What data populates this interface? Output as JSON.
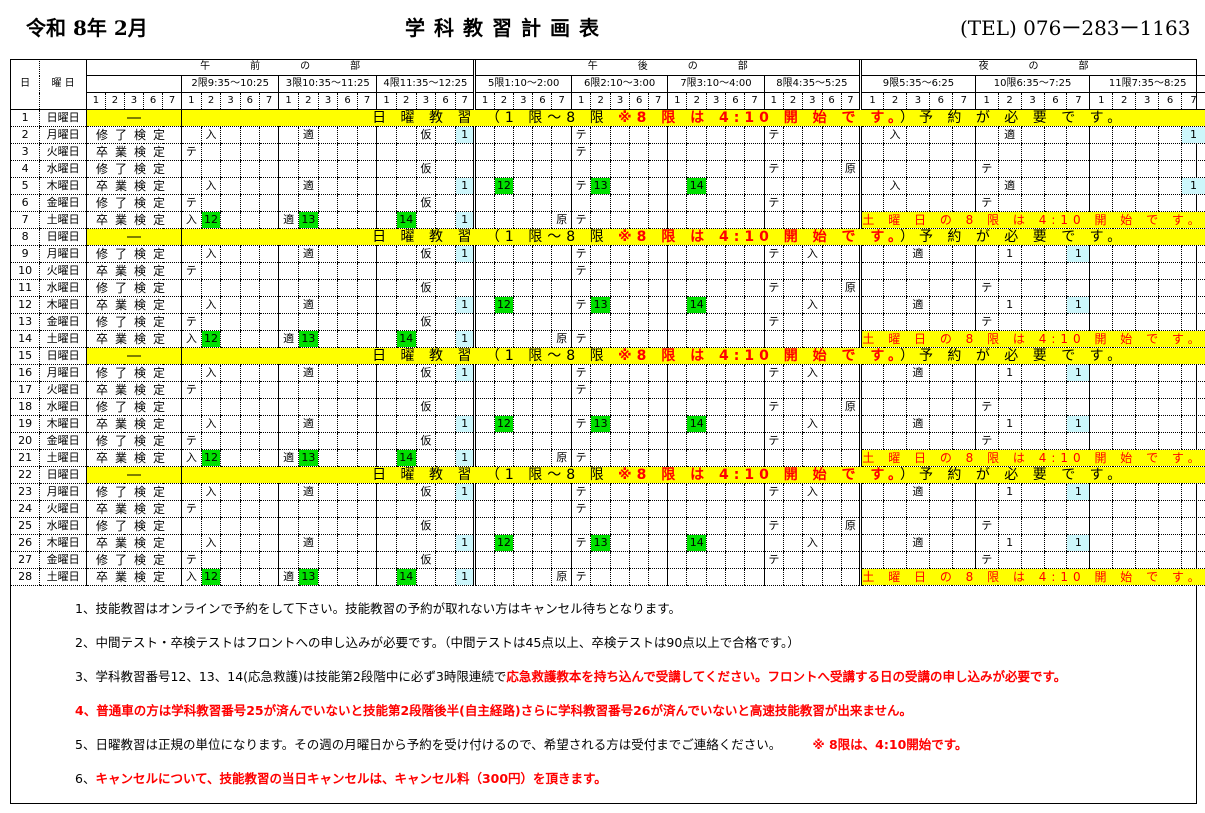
{
  "header": {
    "era_month": "令和 8年 2月",
    "title": "学科教習計画表",
    "tel": "(TEL) 076ー283ー1163"
  },
  "table": {
    "col_day": "日",
    "col_weekday": "曜 日",
    "sections": [
      {
        "label": "午　　　　前　　　　の　　　　部"
      },
      {
        "label": "午　　　　後　　　　の　　　　部"
      },
      {
        "label": "夜　　　　の　　　　部"
      }
    ],
    "periods": [
      "",
      "2限9:35～10:25",
      "3限10:35～11:25",
      "4限11:35～12:25",
      "5限1:10～2:00",
      "6限2:10～3:00",
      "7限3:10～4:00",
      "8限4:35～5:25",
      "9限5:35～6:25",
      "10限6:35～7:25",
      "11限7:35～8:25"
    ],
    "subcols": [
      "1",
      "2",
      "3",
      "6",
      "7"
    ],
    "sunday_dash": "―",
    "sunday_banner": {
      "a": "日 曜 教 習 （1 限～8 限 ",
      "b": "※8 限 は 4:10 開 始 で す。",
      "c": "）予 約 が 必 要 で す。"
    },
    "saturday_banner": "土 曜 日 の 8 限 は 4:10 開 始 で す。",
    "colors": {
      "banner": "#ffff00",
      "green": "#00e000",
      "cyan": "#ccf6fb",
      "red": "#ff0000"
    },
    "rows": [
      {
        "d": "1",
        "w": "日曜日",
        "type": "sunday"
      },
      {
        "d": "2",
        "w": "月曜日",
        "label": "修了検定",
        "cells": [
          {
            "p": 2,
            "s": "2",
            "t": "入"
          },
          {
            "p": 3,
            "s": "2",
            "t": "適"
          },
          {
            "p": 4,
            "s": "3",
            "t": "仮"
          },
          {
            "p": 4,
            "s": "7",
            "t": "1",
            "bg": "cyan"
          },
          {
            "p": 6,
            "s": "1",
            "t": "テ"
          },
          {
            "p": 8,
            "s": "1",
            "t": "テ"
          },
          {
            "p": 9,
            "s": "2",
            "t": "入"
          },
          {
            "p": 10,
            "s": "2",
            "t": "適"
          },
          {
            "p": 11,
            "s": "7",
            "t": "1",
            "bg": "cyan"
          }
        ]
      },
      {
        "d": "3",
        "w": "火曜日",
        "label": "卒業検定",
        "cells": [
          {
            "p": 2,
            "s": "1",
            "t": "テ"
          },
          {
            "p": 6,
            "s": "1",
            "t": "テ"
          }
        ]
      },
      {
        "d": "4",
        "w": "水曜日",
        "label": "修了検定",
        "cells": [
          {
            "p": 4,
            "s": "3",
            "t": "仮"
          },
          {
            "p": 8,
            "s": "1",
            "t": "テ"
          },
          {
            "p": 8,
            "s": "7",
            "t": "原"
          },
          {
            "p": 10,
            "s": "1",
            "t": "テ"
          }
        ]
      },
      {
        "d": "5",
        "w": "木曜日",
        "label": "卒業検定",
        "cells": [
          {
            "p": 2,
            "s": "2",
            "t": "入"
          },
          {
            "p": 3,
            "s": "2",
            "t": "適"
          },
          {
            "p": 4,
            "s": "7",
            "t": "1",
            "bg": "cyan"
          },
          {
            "p": 5,
            "s": "2",
            "t": "12",
            "bg": "green"
          },
          {
            "p": 6,
            "s": "1",
            "t": "テ"
          },
          {
            "p": 6,
            "s": "2",
            "t": "13",
            "bg": "green"
          },
          {
            "p": 7,
            "s": "2",
            "t": "14",
            "bg": "green"
          },
          {
            "p": 9,
            "s": "2",
            "t": "入"
          },
          {
            "p": 10,
            "s": "2",
            "t": "適"
          },
          {
            "p": 11,
            "s": "7",
            "t": "1",
            "bg": "cyan"
          }
        ]
      },
      {
        "d": "6",
        "w": "金曜日",
        "label": "修了検定",
        "cells": [
          {
            "p": 2,
            "s": "1",
            "t": "テ"
          },
          {
            "p": 4,
            "s": "3",
            "t": "仮"
          },
          {
            "p": 8,
            "s": "1",
            "t": "テ"
          },
          {
            "p": 10,
            "s": "1",
            "t": "テ"
          }
        ]
      },
      {
        "d": "7",
        "w": "土曜日",
        "label": "卒業検定",
        "type": "saturday",
        "cells": [
          {
            "p": 2,
            "s": "1",
            "t": "入"
          },
          {
            "p": 2,
            "s": "2",
            "t": "12",
            "bg": "green"
          },
          {
            "p": 3,
            "s": "1",
            "t": "適"
          },
          {
            "p": 3,
            "s": "2",
            "t": "13",
            "bg": "green"
          },
          {
            "p": 4,
            "s": "2",
            "t": "14",
            "bg": "green"
          },
          {
            "p": 4,
            "s": "7",
            "t": "1",
            "bg": "cyan"
          },
          {
            "p": 5,
            "s": "7",
            "t": "原"
          },
          {
            "p": 6,
            "s": "1",
            "t": "テ"
          }
        ]
      },
      {
        "d": "8",
        "w": "日曜日",
        "type": "sunday"
      },
      {
        "d": "9",
        "w": "月曜日",
        "label": "修了検定",
        "cells": [
          {
            "p": 2,
            "s": "2",
            "t": "入"
          },
          {
            "p": 3,
            "s": "2",
            "t": "適"
          },
          {
            "p": 4,
            "s": "3",
            "t": "仮"
          },
          {
            "p": 4,
            "s": "7",
            "t": "1",
            "bg": "cyan"
          },
          {
            "p": 6,
            "s": "1",
            "t": "テ"
          },
          {
            "p": 8,
            "s": "1",
            "t": "テ"
          },
          {
            "p": 8,
            "s": "3",
            "t": "入"
          },
          {
            "p": 9,
            "s": "3",
            "t": "適"
          },
          {
            "p": 10,
            "s": "2",
            "t": "1"
          },
          {
            "p": 10,
            "s": "7",
            "t": "1",
            "bg": "cyan"
          }
        ]
      },
      {
        "d": "10",
        "w": "火曜日",
        "label": "卒業検定",
        "cells": [
          {
            "p": 2,
            "s": "1",
            "t": "テ"
          },
          {
            "p": 6,
            "s": "1",
            "t": "テ"
          }
        ]
      },
      {
        "d": "11",
        "w": "水曜日",
        "label": "修了検定",
        "cells": [
          {
            "p": 4,
            "s": "3",
            "t": "仮"
          },
          {
            "p": 8,
            "s": "1",
            "t": "テ"
          },
          {
            "p": 8,
            "s": "7",
            "t": "原"
          },
          {
            "p": 10,
            "s": "1",
            "t": "テ"
          }
        ]
      },
      {
        "d": "12",
        "w": "木曜日",
        "label": "卒業検定",
        "cells": [
          {
            "p": 2,
            "s": "2",
            "t": "入"
          },
          {
            "p": 3,
            "s": "2",
            "t": "適"
          },
          {
            "p": 4,
            "s": "7",
            "t": "1",
            "bg": "cyan"
          },
          {
            "p": 5,
            "s": "2",
            "t": "12",
            "bg": "green"
          },
          {
            "p": 6,
            "s": "1",
            "t": "テ"
          },
          {
            "p": 6,
            "s": "2",
            "t": "13",
            "bg": "green"
          },
          {
            "p": 7,
            "s": "2",
            "t": "14",
            "bg": "green"
          },
          {
            "p": 8,
            "s": "3",
            "t": "入"
          },
          {
            "p": 9,
            "s": "3",
            "t": "適"
          },
          {
            "p": 10,
            "s": "2",
            "t": "1"
          },
          {
            "p": 10,
            "s": "7",
            "t": "1",
            "bg": "cyan"
          }
        ]
      },
      {
        "d": "13",
        "w": "金曜日",
        "label": "修了検定",
        "cells": [
          {
            "p": 2,
            "s": "1",
            "t": "テ"
          },
          {
            "p": 4,
            "s": "3",
            "t": "仮"
          },
          {
            "p": 8,
            "s": "1",
            "t": "テ"
          },
          {
            "p": 10,
            "s": "1",
            "t": "テ"
          }
        ]
      },
      {
        "d": "14",
        "w": "土曜日",
        "label": "卒業検定",
        "type": "saturday",
        "cells": [
          {
            "p": 2,
            "s": "1",
            "t": "入"
          },
          {
            "p": 2,
            "s": "2",
            "t": "12",
            "bg": "green"
          },
          {
            "p": 3,
            "s": "1",
            "t": "適"
          },
          {
            "p": 3,
            "s": "2",
            "t": "13",
            "bg": "green"
          },
          {
            "p": 4,
            "s": "2",
            "t": "14",
            "bg": "green"
          },
          {
            "p": 4,
            "s": "7",
            "t": "1",
            "bg": "cyan"
          },
          {
            "p": 5,
            "s": "7",
            "t": "原"
          },
          {
            "p": 6,
            "s": "1",
            "t": "テ"
          }
        ]
      },
      {
        "d": "15",
        "w": "日曜日",
        "type": "sunday"
      },
      {
        "d": "16",
        "w": "月曜日",
        "label": "修了検定",
        "cells": [
          {
            "p": 2,
            "s": "2",
            "t": "入"
          },
          {
            "p": 3,
            "s": "2",
            "t": "適"
          },
          {
            "p": 4,
            "s": "3",
            "t": "仮"
          },
          {
            "p": 4,
            "s": "7",
            "t": "1",
            "bg": "cyan"
          },
          {
            "p": 6,
            "s": "1",
            "t": "テ"
          },
          {
            "p": 8,
            "s": "1",
            "t": "テ"
          },
          {
            "p": 8,
            "s": "3",
            "t": "入"
          },
          {
            "p": 9,
            "s": "3",
            "t": "適"
          },
          {
            "p": 10,
            "s": "2",
            "t": "1"
          },
          {
            "p": 10,
            "s": "7",
            "t": "1",
            "bg": "cyan"
          }
        ]
      },
      {
        "d": "17",
        "w": "火曜日",
        "label": "卒業検定",
        "cells": [
          {
            "p": 2,
            "s": "1",
            "t": "テ"
          },
          {
            "p": 6,
            "s": "1",
            "t": "テ"
          }
        ]
      },
      {
        "d": "18",
        "w": "水曜日",
        "label": "修了検定",
        "cells": [
          {
            "p": 4,
            "s": "3",
            "t": "仮"
          },
          {
            "p": 8,
            "s": "1",
            "t": "テ"
          },
          {
            "p": 8,
            "s": "7",
            "t": "原"
          },
          {
            "p": 10,
            "s": "1",
            "t": "テ"
          }
        ]
      },
      {
        "d": "19",
        "w": "木曜日",
        "label": "卒業検定",
        "cells": [
          {
            "p": 2,
            "s": "2",
            "t": "入"
          },
          {
            "p": 3,
            "s": "2",
            "t": "適"
          },
          {
            "p": 4,
            "s": "7",
            "t": "1",
            "bg": "cyan"
          },
          {
            "p": 5,
            "s": "2",
            "t": "12",
            "bg": "green"
          },
          {
            "p": 6,
            "s": "1",
            "t": "テ"
          },
          {
            "p": 6,
            "s": "2",
            "t": "13",
            "bg": "green"
          },
          {
            "p": 7,
            "s": "2",
            "t": "14",
            "bg": "green"
          },
          {
            "p": 8,
            "s": "3",
            "t": "入"
          },
          {
            "p": 9,
            "s": "3",
            "t": "適"
          },
          {
            "p": 10,
            "s": "2",
            "t": "1"
          },
          {
            "p": 10,
            "s": "7",
            "t": "1",
            "bg": "cyan"
          }
        ]
      },
      {
        "d": "20",
        "w": "金曜日",
        "label": "修了検定",
        "cells": [
          {
            "p": 2,
            "s": "1",
            "t": "テ"
          },
          {
            "p": 4,
            "s": "3",
            "t": "仮"
          },
          {
            "p": 8,
            "s": "1",
            "t": "テ"
          },
          {
            "p": 10,
            "s": "1",
            "t": "テ"
          }
        ]
      },
      {
        "d": "21",
        "w": "土曜日",
        "label": "卒業検定",
        "type": "saturday",
        "cells": [
          {
            "p": 2,
            "s": "1",
            "t": "入"
          },
          {
            "p": 2,
            "s": "2",
            "t": "12",
            "bg": "green"
          },
          {
            "p": 3,
            "s": "1",
            "t": "適"
          },
          {
            "p": 3,
            "s": "2",
            "t": "13",
            "bg": "green"
          },
          {
            "p": 4,
            "s": "2",
            "t": "14",
            "bg": "green"
          },
          {
            "p": 4,
            "s": "7",
            "t": "1",
            "bg": "cyan"
          },
          {
            "p": 5,
            "s": "7",
            "t": "原"
          },
          {
            "p": 6,
            "s": "1",
            "t": "テ"
          }
        ]
      },
      {
        "d": "22",
        "w": "日曜日",
        "type": "sunday"
      },
      {
        "d": "23",
        "w": "月曜日",
        "label": "修了検定",
        "cells": [
          {
            "p": 2,
            "s": "2",
            "t": "入"
          },
          {
            "p": 3,
            "s": "2",
            "t": "適"
          },
          {
            "p": 4,
            "s": "3",
            "t": "仮"
          },
          {
            "p": 4,
            "s": "7",
            "t": "1",
            "bg": "cyan"
          },
          {
            "p": 6,
            "s": "1",
            "t": "テ"
          },
          {
            "p": 8,
            "s": "1",
            "t": "テ"
          },
          {
            "p": 8,
            "s": "3",
            "t": "入"
          },
          {
            "p": 9,
            "s": "3",
            "t": "適"
          },
          {
            "p": 10,
            "s": "2",
            "t": "1"
          },
          {
            "p": 10,
            "s": "7",
            "t": "1",
            "bg": "cyan"
          }
        ]
      },
      {
        "d": "24",
        "w": "火曜日",
        "label": "卒業検定",
        "cells": [
          {
            "p": 2,
            "s": "1",
            "t": "テ"
          },
          {
            "p": 6,
            "s": "1",
            "t": "テ"
          }
        ]
      },
      {
        "d": "25",
        "w": "水曜日",
        "label": "修了検定",
        "cells": [
          {
            "p": 4,
            "s": "3",
            "t": "仮"
          },
          {
            "p": 8,
            "s": "1",
            "t": "テ"
          },
          {
            "p": 8,
            "s": "7",
            "t": "原"
          },
          {
            "p": 10,
            "s": "1",
            "t": "テ"
          }
        ]
      },
      {
        "d": "26",
        "w": "木曜日",
        "label": "卒業検定",
        "cells": [
          {
            "p": 2,
            "s": "2",
            "t": "入"
          },
          {
            "p": 3,
            "s": "2",
            "t": "適"
          },
          {
            "p": 4,
            "s": "7",
            "t": "1",
            "bg": "cyan"
          },
          {
            "p": 5,
            "s": "2",
            "t": "12",
            "bg": "green"
          },
          {
            "p": 6,
            "s": "1",
            "t": "テ"
          },
          {
            "p": 6,
            "s": "2",
            "t": "13",
            "bg": "green"
          },
          {
            "p": 7,
            "s": "2",
            "t": "14",
            "bg": "green"
          },
          {
            "p": 8,
            "s": "3",
            "t": "入"
          },
          {
            "p": 9,
            "s": "3",
            "t": "適"
          },
          {
            "p": 10,
            "s": "2",
            "t": "1"
          },
          {
            "p": 10,
            "s": "7",
            "t": "1",
            "bg": "cyan"
          }
        ]
      },
      {
        "d": "27",
        "w": "金曜日",
        "label": "修了検定",
        "cells": [
          {
            "p": 2,
            "s": "1",
            "t": "テ"
          },
          {
            "p": 4,
            "s": "3",
            "t": "仮"
          },
          {
            "p": 8,
            "s": "1",
            "t": "テ"
          },
          {
            "p": 10,
            "s": "1",
            "t": "テ"
          }
        ]
      },
      {
        "d": "28",
        "w": "土曜日",
        "label": "卒業検定",
        "type": "saturday",
        "cells": [
          {
            "p": 2,
            "s": "1",
            "t": "入"
          },
          {
            "p": 2,
            "s": "2",
            "t": "12",
            "bg": "green"
          },
          {
            "p": 3,
            "s": "1",
            "t": "適"
          },
          {
            "p": 3,
            "s": "2",
            "t": "13",
            "bg": "green"
          },
          {
            "p": 4,
            "s": "2",
            "t": "14",
            "bg": "green"
          },
          {
            "p": 4,
            "s": "7",
            "t": "1",
            "bg": "cyan"
          },
          {
            "p": 5,
            "s": "7",
            "t": "原"
          },
          {
            "p": 6,
            "s": "1",
            "t": "テ"
          }
        ]
      }
    ]
  },
  "notes": [
    {
      "black": "1、技能教習はオンラインで予約をして下さい。技能教習の予約が取れない方はキャンセル待ちとなります。",
      "red": ""
    },
    {
      "black": "2、中間テスト・卒検テストはフロントへの申し込みが必要です。（中間テストは45点以上、卒検テストは90点以上で合格です。）",
      "red": ""
    },
    {
      "black": "3、学科教習番号12、13、14(応急救護)は技能第2段階中に必ず3時限連続で",
      "red": "応急救護教本を持ち込んで受講してください。フロントへ受講する日の受講の申し込みが必要です。"
    },
    {
      "black": "",
      "red": "4、普通車の方は学科教習番号25が済んでいないと技能第2段階後半(自主経路)さらに学科教習番号26が済んでいないと高速技能教習が出来ません。"
    },
    {
      "black": "5、日曜教習は正規の単位になります。その週の月曜日から予約を受け付けるので、希望される方は受付までご連絡ください。　　　",
      "red": "※ 8限は、4:10開始です。"
    },
    {
      "black": "6、",
      "red": "キャンセルについて、技能教習の当日キャンセルは、キャンセル料（300円）を頂きます。"
    }
  ]
}
